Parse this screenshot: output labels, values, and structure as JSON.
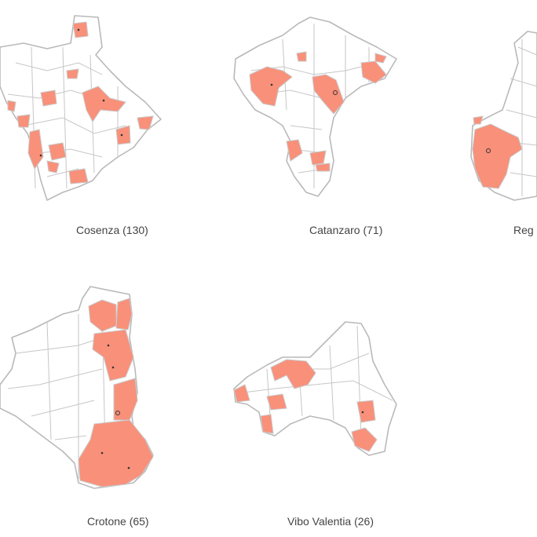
{
  "panels": [
    {
      "label": "Cosenza (130)"
    },
    {
      "label": "Catanzaro (71)"
    },
    {
      "label": "Reg"
    },
    {
      "label": "Crotone (65)"
    },
    {
      "label": "Vibo Valentia (26)"
    }
  ]
}
